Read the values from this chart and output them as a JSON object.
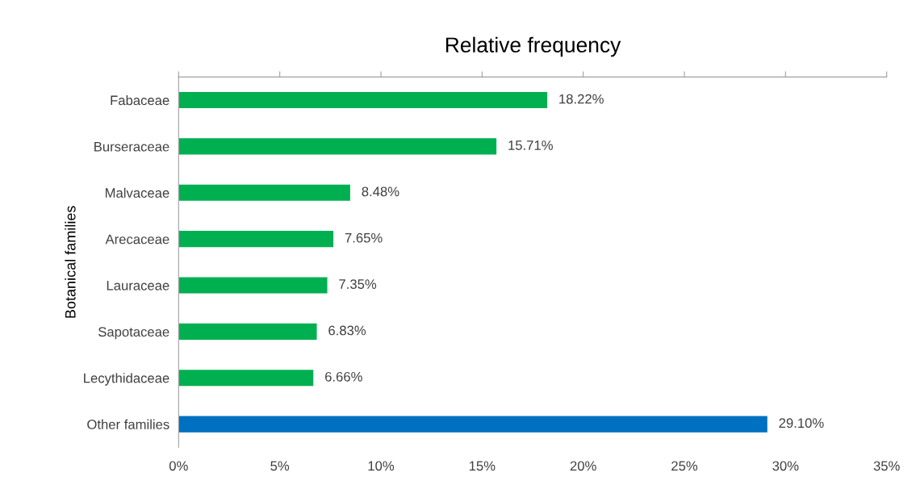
{
  "chart_data": {
    "type": "bar",
    "orientation": "horizontal",
    "title": "Relative frequency",
    "ylabel": "Botanical families",
    "categories": [
      "Fabaceae",
      "Burseraceae",
      "Malvaceae",
      "Arecaceae",
      "Lauraceae",
      "Sapotaceae",
      "Lecythidaceae",
      "Other families"
    ],
    "values": [
      18.22,
      15.71,
      8.48,
      7.65,
      7.35,
      6.83,
      6.66,
      29.1
    ],
    "colors": [
      "#00b050",
      "#00b050",
      "#00b050",
      "#00b050",
      "#00b050",
      "#00b050",
      "#00b050",
      "#0070c0"
    ],
    "value_labels": [
      "18.22%",
      "15.71%",
      "8.48%",
      "7.65%",
      "7.35%",
      "6.83%",
      "6.66%",
      "29.10%"
    ],
    "xlim": [
      0,
      35
    ],
    "xticks": [
      {
        "value": 0,
        "label": "0%"
      },
      {
        "value": 5,
        "label": "5%"
      },
      {
        "value": 10,
        "label": "10%"
      },
      {
        "value": 15,
        "label": "15%"
      },
      {
        "value": 20,
        "label": "20%"
      },
      {
        "value": 25,
        "label": "25%"
      },
      {
        "value": 30,
        "label": "30%"
      },
      {
        "value": 35,
        "label": "35%"
      }
    ],
    "grid": false,
    "legend": false
  }
}
